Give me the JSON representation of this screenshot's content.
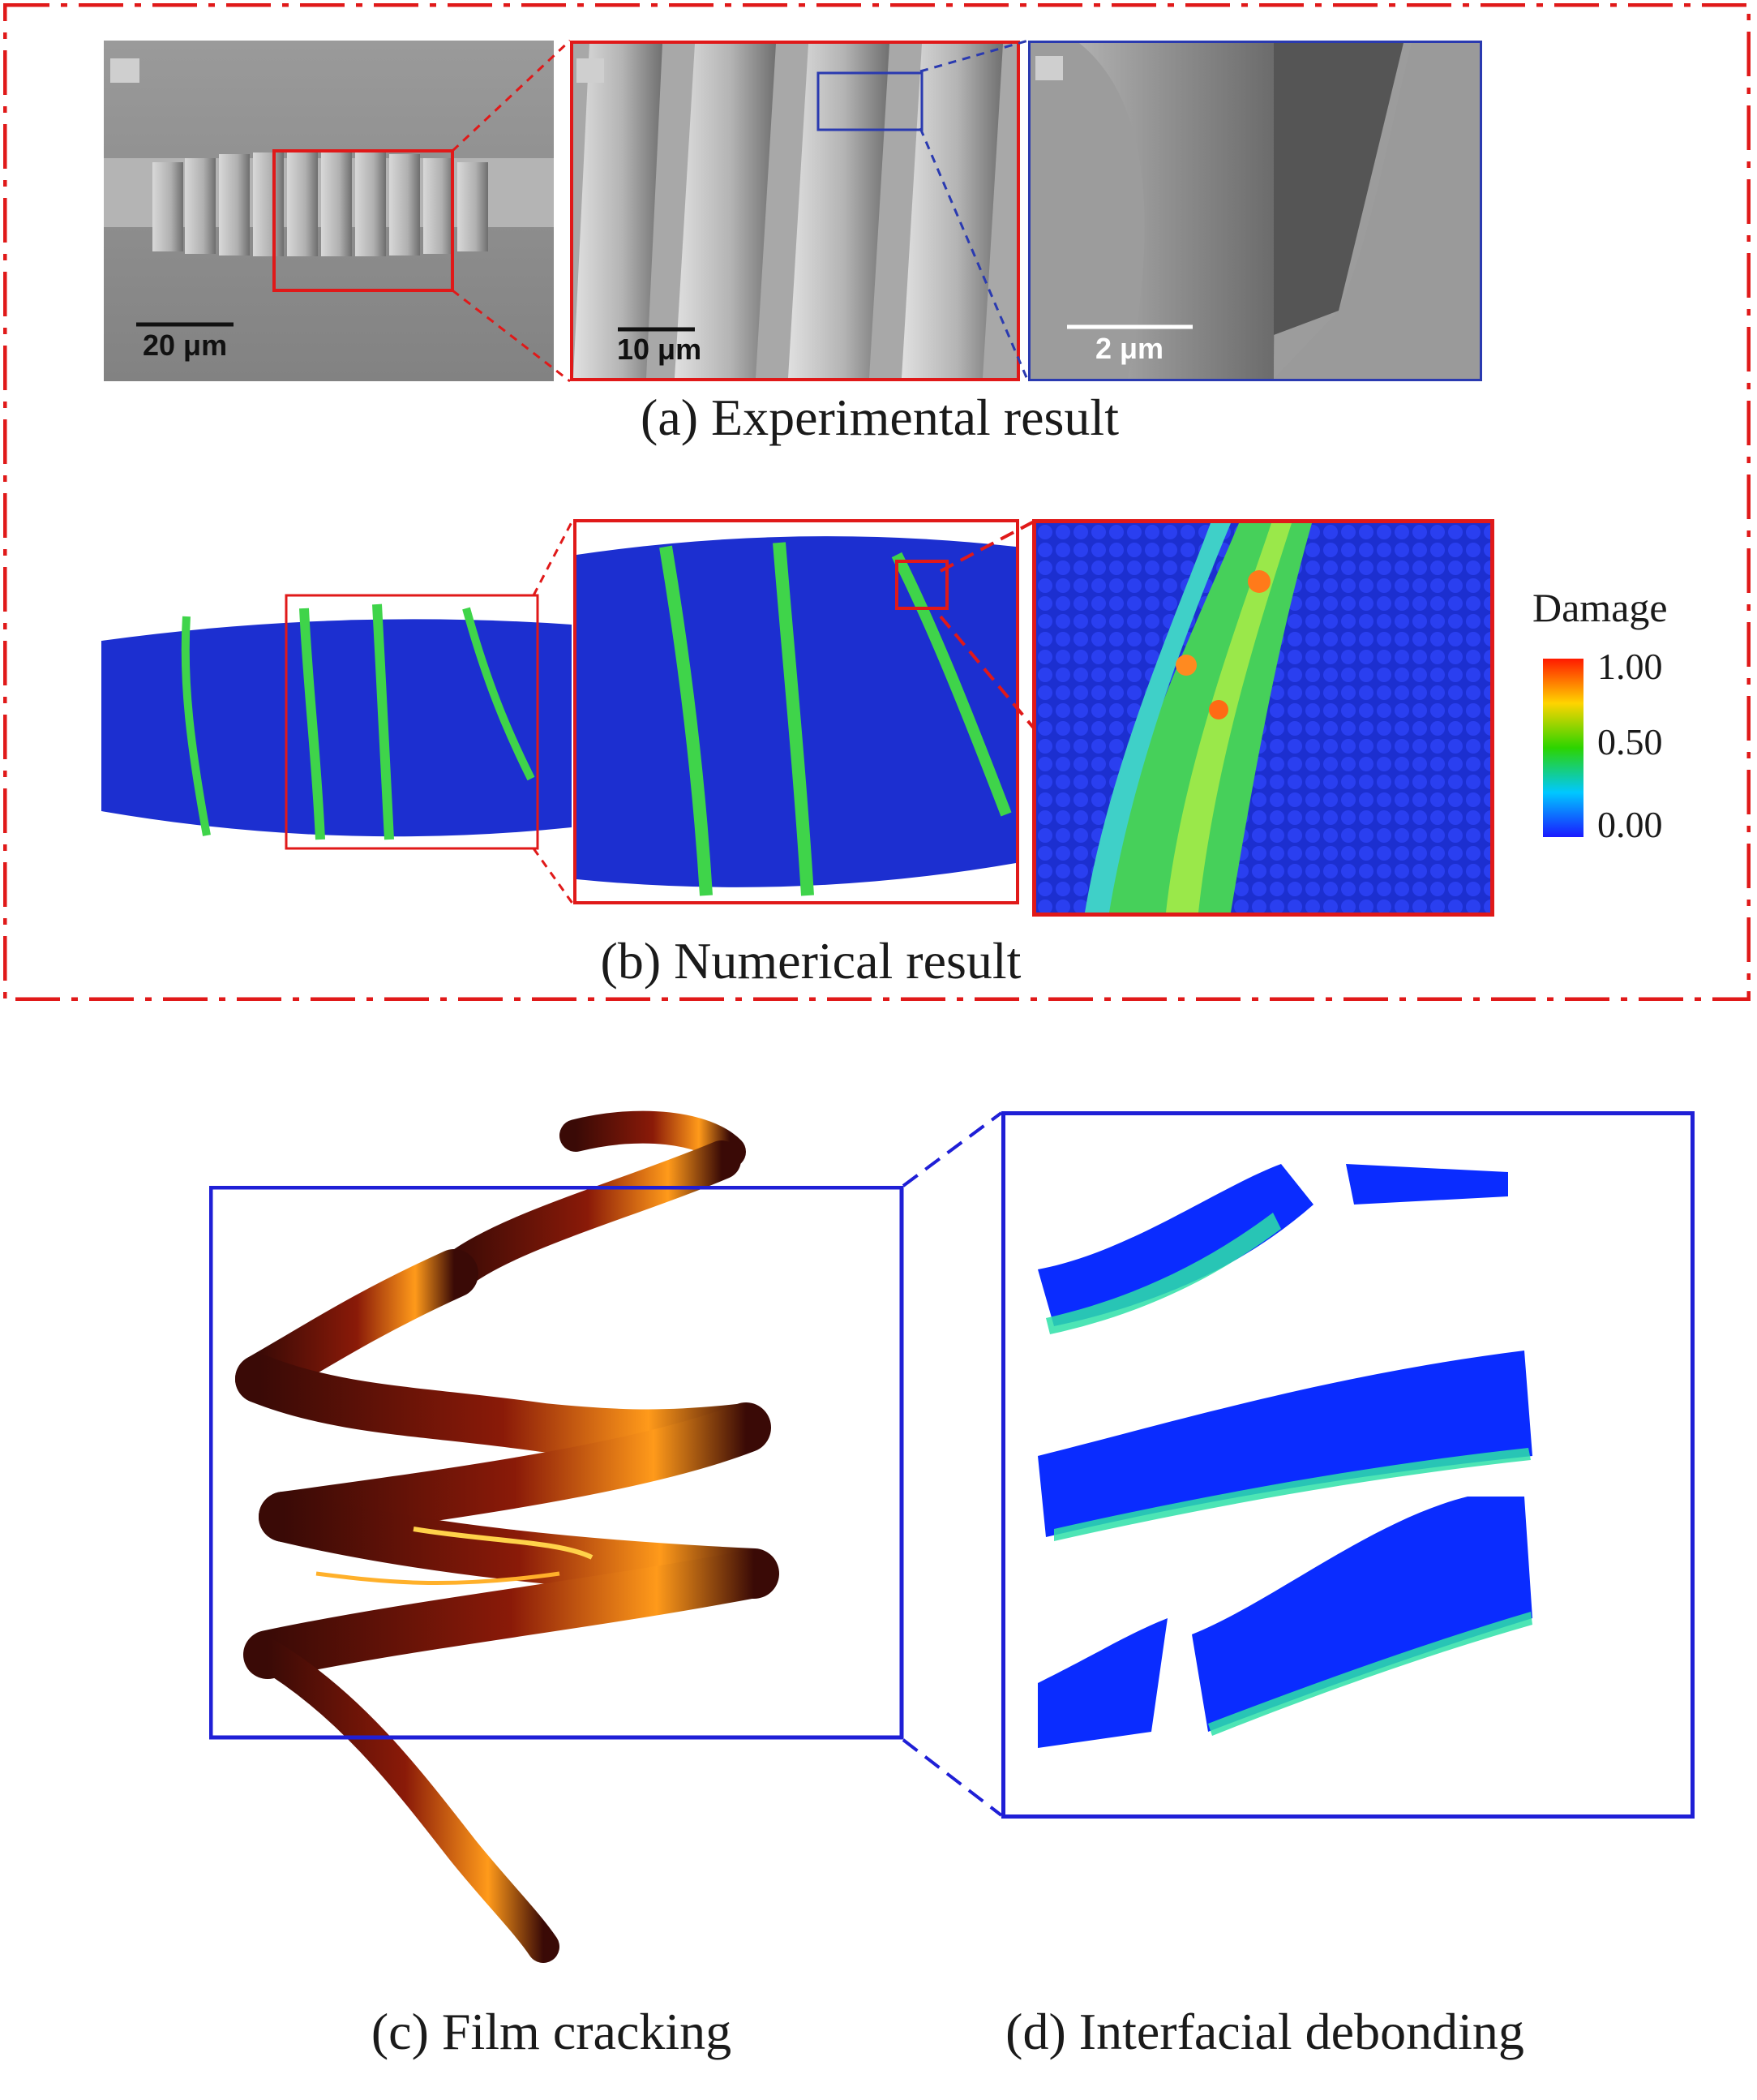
{
  "captions": {
    "a": "(a) Experimental result",
    "b": "(b) Numerical result",
    "c": "(c) Film cracking",
    "d": "(d) Interfacial debonding"
  },
  "scale_bars": {
    "sem1": "20 μm",
    "sem2": "10 μm",
    "sem3": "2 μm"
  },
  "legend": {
    "title": "Damage",
    "ticks": [
      "1.00",
      "0.50",
      "0.00"
    ],
    "colors": [
      "#ff1a00",
      "#ffd400",
      "#2cd400",
      "#00c8ff",
      "#1a1aff"
    ]
  },
  "colors": {
    "frame_red": "#e01919",
    "frame_blue": "#1f1fd6",
    "sem_gray": "#8a8a8a",
    "sim_blue": "#1c2fd0",
    "crack_green": "#3fd44a",
    "film_dark": "#3a0a06",
    "film_hot": "#ff9a1a",
    "debond_blue": "#0a2cff",
    "debond_green": "#2ee0a8"
  }
}
